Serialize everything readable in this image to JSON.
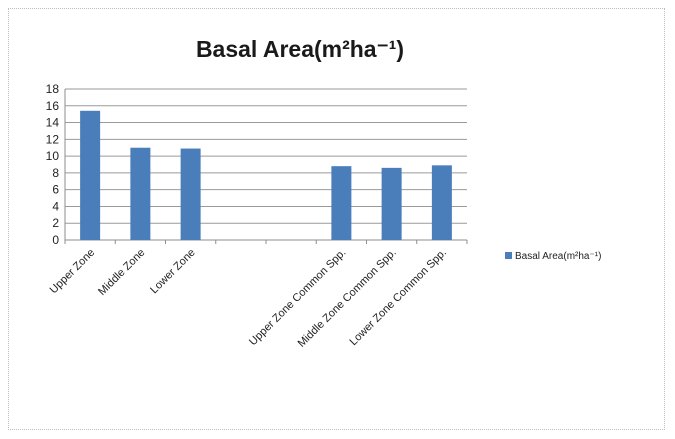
{
  "chart_data": {
    "type": "bar",
    "title": "Basal Area(m²ha⁻¹)",
    "xlabel": "",
    "ylabel": "",
    "ylim": [
      0,
      18
    ],
    "yticks": [
      0,
      2,
      4,
      6,
      8,
      10,
      12,
      14,
      16,
      18
    ],
    "grid": true,
    "legend_position": "right",
    "categories": [
      "Upper Zone",
      "Middle Zone",
      "Lower Zone",
      "",
      "",
      "Upper Zone Common Spp.",
      "Middle Zone Common Spp.",
      "Lower Zone Common Spp."
    ],
    "series": [
      {
        "name": "Basal Area(m²ha⁻¹)",
        "color": "#4a7ebb",
        "values": [
          15.4,
          11.0,
          10.9,
          null,
          null,
          8.8,
          8.6,
          8.9
        ]
      }
    ]
  }
}
